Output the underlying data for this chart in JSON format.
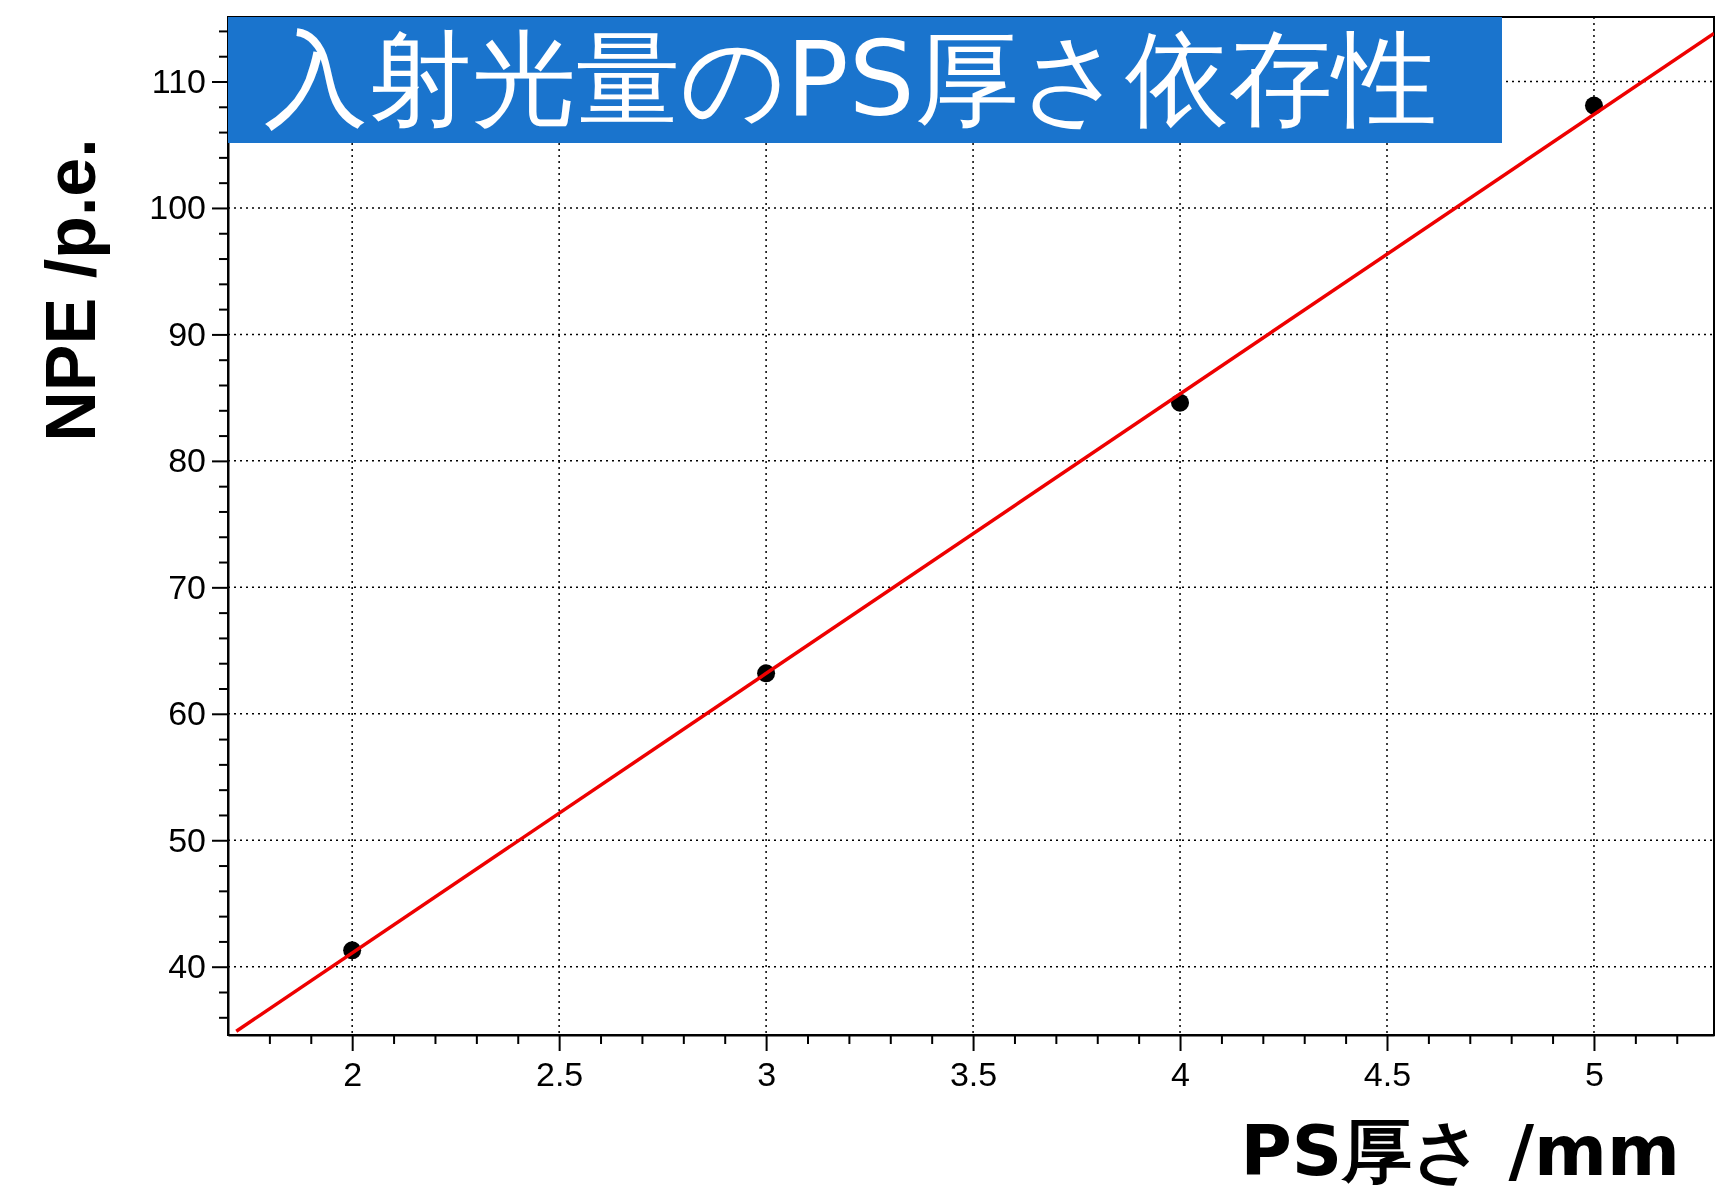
{
  "chart_data": {
    "type": "scatter",
    "title": "入射光量のPS厚さ依存性",
    "xlabel": "PS厚さ /mm",
    "ylabel": "NPE /p.e.",
    "xlim": [
      1.7,
      5.29
    ],
    "ylim": [
      34.6,
      115.1
    ],
    "xticks": [
      {
        "value": 1.8,
        "label": null
      },
      {
        "value": 1.9,
        "label": null
      },
      2,
      {
        "value": 2.1,
        "label": null
      },
      {
        "value": 2.2,
        "label": null
      },
      {
        "value": 2.3,
        "label": null
      },
      {
        "value": 2.4,
        "label": null
      },
      2.5,
      {
        "value": 2.6,
        "label": null
      },
      {
        "value": 2.7,
        "label": null
      },
      {
        "value": 2.8,
        "label": null
      },
      {
        "value": 2.9,
        "label": null
      },
      3,
      {
        "value": 3.1,
        "label": null
      },
      {
        "value": 3.2,
        "label": null
      },
      {
        "value": 3.3,
        "label": null
      },
      {
        "value": 3.4,
        "label": null
      },
      3.5,
      {
        "value": 3.6,
        "label": null
      },
      {
        "value": 3.7,
        "label": null
      },
      {
        "value": 3.8,
        "label": null
      },
      {
        "value": 3.9,
        "label": null
      },
      4,
      {
        "value": 4.1,
        "label": null
      },
      {
        "value": 4.2,
        "label": null
      },
      {
        "value": 4.3,
        "label": null
      },
      {
        "value": 4.4,
        "label": null
      },
      4.5,
      {
        "value": 4.6,
        "label": null
      },
      {
        "value": 4.7,
        "label": null
      },
      {
        "value": 4.8,
        "label": null
      },
      {
        "value": 4.9,
        "label": null
      },
      5,
      {
        "value": 5.1,
        "label": null
      },
      {
        "value": 5.2,
        "label": null
      }
    ],
    "yticks": [
      {
        "value": 36,
        "label": null
      },
      {
        "value": 38,
        "label": null
      },
      40,
      {
        "value": 42,
        "label": null
      },
      {
        "value": 44,
        "label": null
      },
      {
        "value": 46,
        "label": null
      },
      {
        "value": 48,
        "label": null
      },
      50,
      {
        "value": 52,
        "label": null
      },
      {
        "value": 54,
        "label": null
      },
      {
        "value": 56,
        "label": null
      },
      {
        "value": 58,
        "label": null
      },
      60,
      {
        "value": 62,
        "label": null
      },
      {
        "value": 64,
        "label": null
      },
      {
        "value": 66,
        "label": null
      },
      {
        "value": 68,
        "label": null
      },
      70,
      {
        "value": 72,
        "label": null
      },
      {
        "value": 74,
        "label": null
      },
      {
        "value": 76,
        "label": null
      },
      {
        "value": 78,
        "label": null
      },
      80,
      {
        "value": 82,
        "label": null
      },
      {
        "value": 84,
        "label": null
      },
      {
        "value": 86,
        "label": null
      },
      {
        "value": 88,
        "label": null
      },
      90,
      {
        "value": 92,
        "label": null
      },
      {
        "value": 94,
        "label": null
      },
      {
        "value": 96,
        "label": null
      },
      {
        "value": 98,
        "label": null
      },
      100,
      {
        "value": 102,
        "label": null
      },
      {
        "value": 104,
        "label": null
      },
      {
        "value": 106,
        "label": null
      },
      {
        "value": 108,
        "label": null
      },
      110,
      {
        "value": 112,
        "label": null
      },
      {
        "value": 114,
        "label": null
      }
    ],
    "grid": true,
    "series": [
      {
        "type": "scatter",
        "color": "#000000",
        "marker": "circle",
        "x": [
          2,
          3,
          4,
          5
        ],
        "values": [
          41.3,
          63.2,
          84.6,
          108.1
        ]
      },
      {
        "type": "line",
        "color": "#ee0000",
        "marker": "none",
        "line_style": "solid",
        "x": [
          1.72,
          5.29
        ],
        "values": [
          34.9,
          113.8
        ]
      }
    ]
  }
}
